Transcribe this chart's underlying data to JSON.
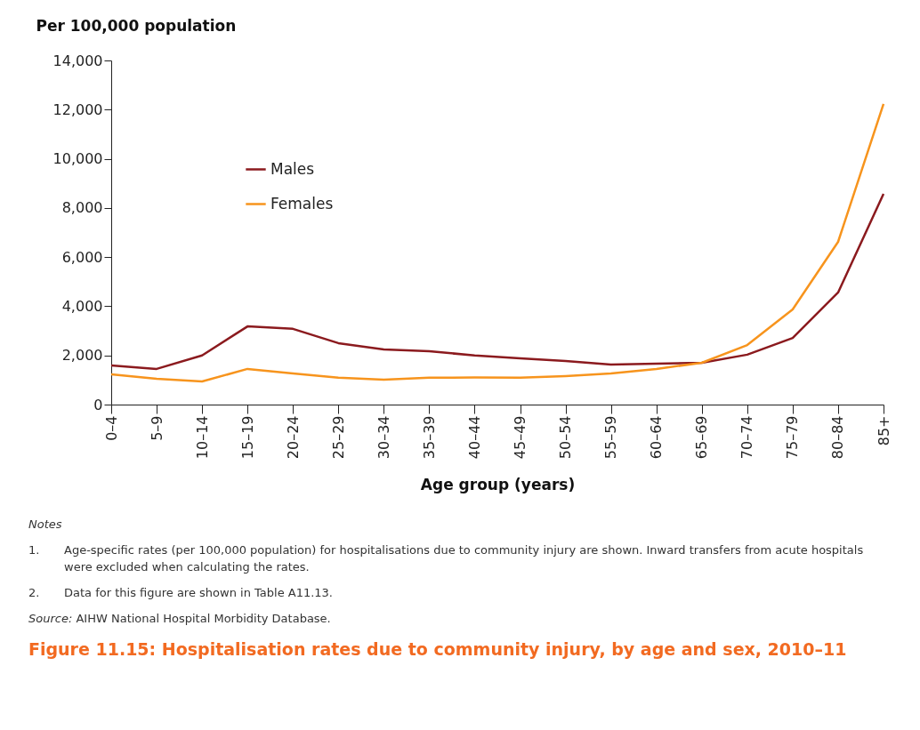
{
  "chart_data": {
    "type": "line",
    "title": "Figure 11.15: Hospitalisation rates due to community injury, by age and sex, 2010–11",
    "ylabel": "Per 100,000 population",
    "xlabel": "Age group (years)",
    "categories": [
      "0–4",
      "5–9",
      "10–14",
      "15–19",
      "20–24",
      "25–29",
      "30–34",
      "35–39",
      "40–44",
      "45–49",
      "50–54",
      "55–59",
      "60–64",
      "65–69",
      "70–74",
      "75–79",
      "80–84",
      "85+"
    ],
    "series": [
      {
        "name": "Males",
        "color": "#8b1a1e",
        "values": [
          1590,
          1450,
          2000,
          3180,
          3080,
          2500,
          2240,
          2170,
          2000,
          1880,
          1770,
          1630,
          1660,
          1700,
          2030,
          2710,
          4560,
          8570
        ]
      },
      {
        "name": "Females",
        "color": "#f7941d",
        "values": [
          1230,
          1050,
          940,
          1450,
          1270,
          1090,
          1010,
          1090,
          1100,
          1090,
          1160,
          1270,
          1450,
          1700,
          2420,
          3870,
          6620,
          12230
        ]
      }
    ],
    "ylim": [
      0,
      14000
    ],
    "yticks": [
      0,
      {
        "value": 2000,
        "label": "2,000"
      },
      {
        "value": 4000,
        "label": "4,000"
      },
      {
        "value": 6000,
        "label": "6,000"
      },
      {
        "value": 8000,
        "label": "8,000"
      },
      {
        "value": 10000,
        "label": "10,000"
      },
      {
        "value": 12000,
        "label": "12,000"
      },
      {
        "value": 14000,
        "label": "14,000"
      }
    ],
    "grid": false,
    "legend": "top left",
    "annotations": [
      "Notes",
      "1.\tAge-specific rates (per 100,000 population) for hospitalisations due to community injury are shown. Inward transfers from acute hospitals were excluded when calculating the rates.",
      "2.\tData for this figure are shown in Table A11.13.",
      "Source: AIHW National Hospital Morbidity Database."
    ]
  }
}
